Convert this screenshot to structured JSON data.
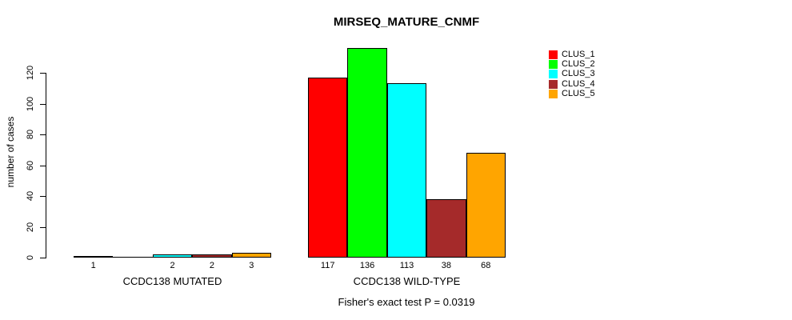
{
  "title": "MIRSEQ_MATURE_CNMF",
  "footer": {
    "annotation": "Fisher's exact test P = 0.0319"
  },
  "chart_data": {
    "type": "bar",
    "title": "MIRSEQ_MATURE_CNMF",
    "ylabel": "number of cases",
    "xlabel": "",
    "annotation": "Fisher's exact test P = 0.0319",
    "categories": [
      "CCDC138 MUTATED",
      "CCDC138 WILD-TYPE"
    ],
    "series": [
      {
        "name": "CLUS_1",
        "color": "#FF0000",
        "values": [
          1,
          117
        ]
      },
      {
        "name": "CLUS_2",
        "color": "#00FF00",
        "values": [
          0,
          136
        ]
      },
      {
        "name": "CLUS_3",
        "color": "#00FFFF",
        "values": [
          2,
          113
        ]
      },
      {
        "name": "CLUS_4",
        "color": "#A52A2A",
        "values": [
          2,
          38
        ]
      },
      {
        "name": "CLUS_5",
        "color": "#FFA500",
        "values": [
          3,
          68
        ]
      }
    ],
    "bar_value_labels": [
      [
        "1",
        "",
        "2",
        "2",
        "3"
      ],
      [
        "117",
        "136",
        "113",
        "38",
        "68"
      ]
    ],
    "yticks": [
      0,
      20,
      40,
      60,
      80,
      100,
      120
    ],
    "ylim": [
      0,
      138
    ],
    "grid": false,
    "legend_position": "top-right",
    "axis_color": "#000000",
    "bar_border_color": "#000000"
  }
}
